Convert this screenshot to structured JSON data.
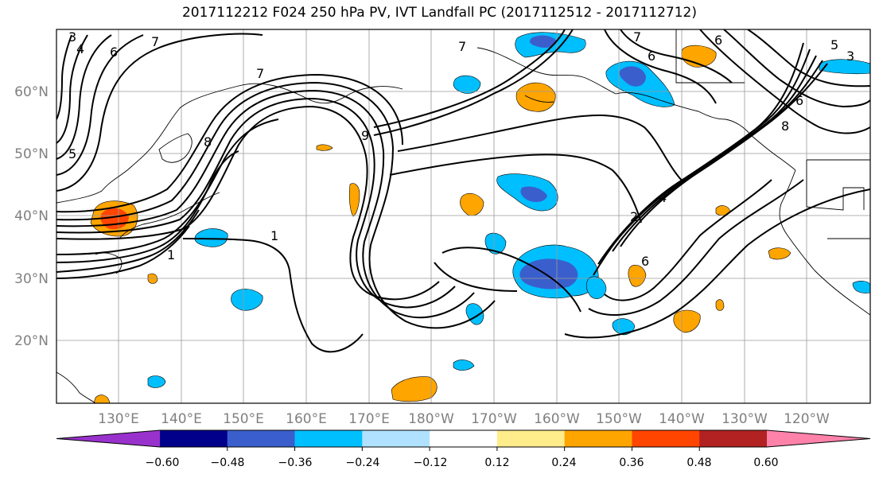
{
  "title": "2017112212 F024 250 hPa PV, IVT Landfall PC (2017112512 - 2017112712)",
  "map": {
    "lon_labels": [
      "130°E",
      "140°E",
      "150°E",
      "160°E",
      "170°E",
      "180°W",
      "170°W",
      "160°W",
      "150°W",
      "140°W",
      "130°W",
      "120°W"
    ],
    "lat_labels": [
      "60°N",
      "50°N",
      "40°N",
      "30°N",
      "20°N"
    ],
    "contour_labels": [
      "3",
      "4",
      "5",
      "6",
      "7",
      "7",
      "6",
      "7",
      "5",
      "8",
      "9",
      "8",
      "7",
      "6",
      "3",
      "2",
      "1",
      "1",
      "4",
      "6",
      "6"
    ]
  },
  "colorbar": {
    "ticks": [
      "−0.60",
      "−0.48",
      "−0.36",
      "−0.24",
      "−0.12",
      "0.12",
      "0.24",
      "0.36",
      "0.48",
      "0.60"
    ],
    "colors": [
      "#9932cc",
      "#00008b",
      "#3a5fcd",
      "#00bfff",
      "#b0e2ff",
      "#ffffff",
      "#ffec8b",
      "#ffa500",
      "#ff4500",
      "#b22222",
      "#ff82ab"
    ]
  }
}
